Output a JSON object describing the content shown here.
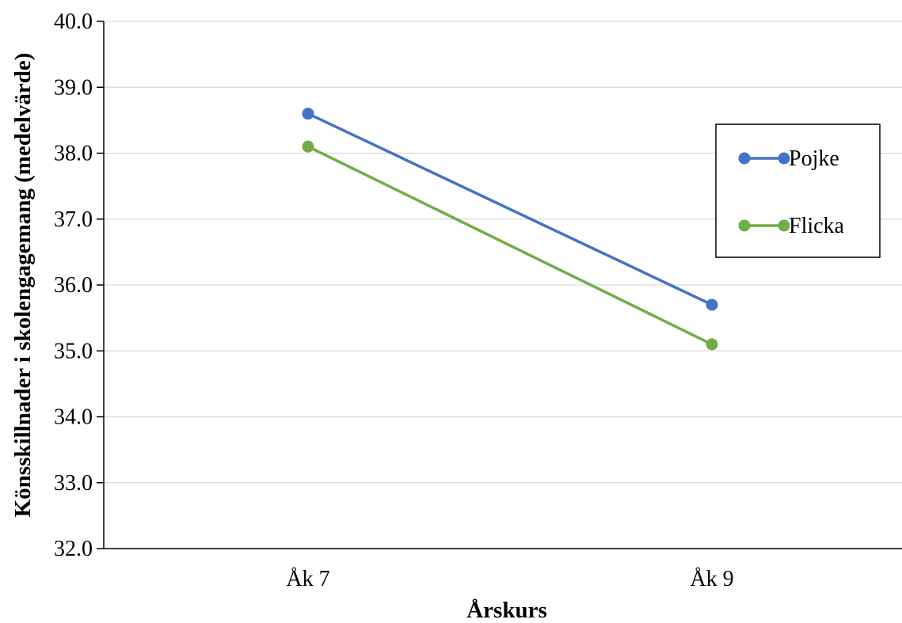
{
  "chart_data": {
    "type": "line",
    "categories": [
      "Åk 7",
      "Åk 9"
    ],
    "series": [
      {
        "name": "Pojke",
        "values": [
          38.6,
          35.7
        ],
        "color": "#4472C4"
      },
      {
        "name": "Flicka",
        "values": [
          38.1,
          35.1
        ],
        "color": "#70AD47"
      }
    ],
    "xlabel": "Årskurs",
    "ylabel": "Könsskillnader i skolengagemang (medelvärde)",
    "ylim": [
      32.0,
      40.0
    ],
    "yticks": [
      "32.0",
      "33.0",
      "34.0",
      "35.0",
      "36.0",
      "37.0",
      "38.0",
      "39.0",
      "40.0"
    ],
    "grid": true,
    "legend_position": "right"
  }
}
